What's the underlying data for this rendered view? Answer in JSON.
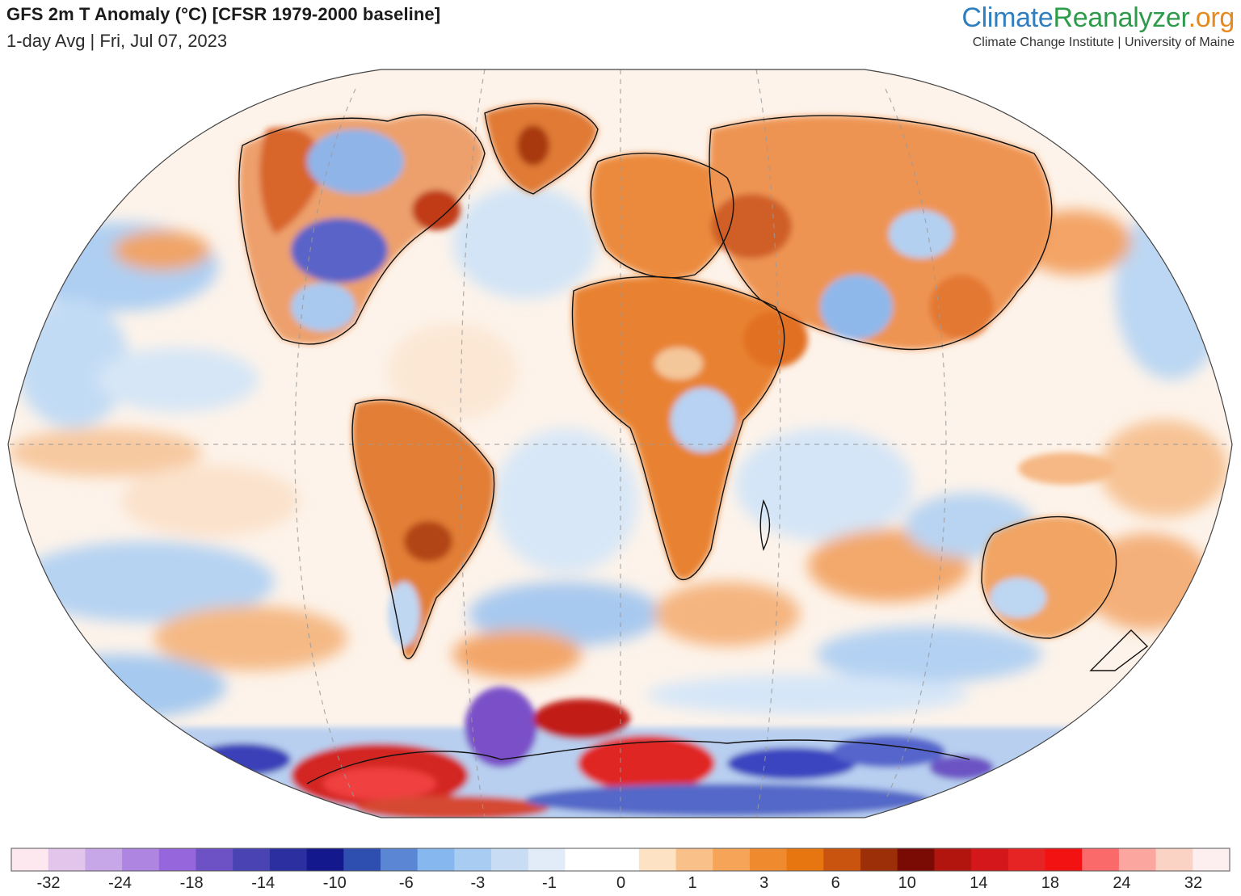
{
  "header": {
    "title": "GFS 2m T Anomaly (°C) [CFSR 1979-2000 baseline]",
    "subtitle": "1-day Avg | Fri, Jul 07, 2023"
  },
  "brand": {
    "part1": "Climate",
    "part2": "Reanalyzer",
    "part3": ".org",
    "tagline": "Climate Change Institute | University of Maine",
    "colors": {
      "part1": "#2f7fc0",
      "part2": "#2e9b4b",
      "part3": "#e58a1f"
    }
  },
  "map": {
    "projection": "Winkel-Tripel style world view",
    "background_anomaly_color": "#ffffff",
    "regions": [
      {
        "name": "Northwestern North America",
        "color": "#e8792a"
      },
      {
        "name": "Central United States",
        "color": "#4d5bc8"
      },
      {
        "name": "Greenland",
        "color": "#e07a35"
      },
      {
        "name": "Eastern Canada",
        "color": "#c9431a"
      },
      {
        "name": "Europe and Mediterranean",
        "color": "#eb8a3c"
      },
      {
        "name": "Northern Africa",
        "color": "#e88232"
      },
      {
        "name": "Central Asia",
        "color": "#d9682b"
      },
      {
        "name": "Siberia",
        "color": "#ef9a55"
      },
      {
        "name": "Northern India",
        "color": "#8cb8ea"
      },
      {
        "name": "South America interior",
        "color": "#d86a2e"
      },
      {
        "name": "Southern Africa",
        "color": "#e07a30"
      },
      {
        "name": "Australia",
        "color": "#f0a060"
      },
      {
        "name": "Weddell Sea Antarctica",
        "color": "#7a4fc8"
      },
      {
        "name": "West Antarctica warm",
        "color": "#e0201e"
      },
      {
        "name": "East Antarctica warm",
        "color": "#e02824"
      },
      {
        "name": "Antarctic coast cold",
        "color": "#3b3fb8"
      }
    ]
  },
  "colorbar": {
    "colors": [
      "#fde8ef",
      "#e3c5ec",
      "#c8a7e8",
      "#ae86e2",
      "#9666dc",
      "#6c52c4",
      "#4a43b4",
      "#2c2fa0",
      "#13188c",
      "#2e4fb0",
      "#5b86d4",
      "#86b7ef",
      "#a9cdf2",
      "#c8ddf4",
      "#e2ecf8",
      "#ffffff",
      "#ffffff",
      "#fde3c4",
      "#f9c08a",
      "#f5a458",
      "#f08a2e",
      "#e87610",
      "#c9540f",
      "#9c2e08",
      "#7a0a04",
      "#b2140e",
      "#d3171a",
      "#e62423",
      "#f21212",
      "#fa6a6a",
      "#fba7a0",
      "#fbd3c4",
      "#fdeef0"
    ],
    "labels": [
      "-32",
      "-24",
      "-18",
      "-14",
      "-10",
      "-6",
      "-3",
      "-1",
      "0",
      "1",
      "3",
      "6",
      "10",
      "14",
      "18",
      "24",
      "32"
    ]
  }
}
